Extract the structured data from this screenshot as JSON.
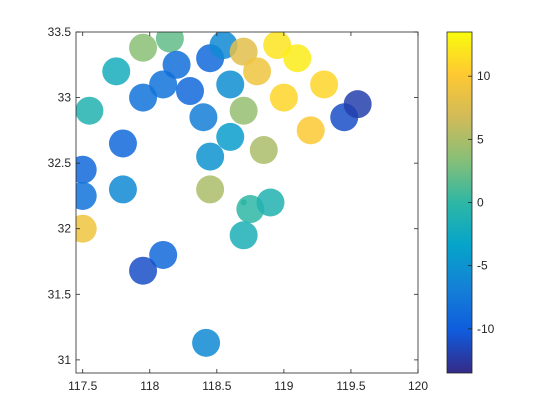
{
  "chart_data": {
    "type": "heatmap",
    "title": "",
    "xlabel": "",
    "ylabel": "",
    "xlim": [
      117.45,
      120.0
    ],
    "ylim": [
      30.9,
      33.5
    ],
    "x_ticks": [
      117.5,
      118,
      118.5,
      119,
      119.5,
      120
    ],
    "x_tick_labels": [
      "117.5",
      "118",
      "118.5",
      "119",
      "119.5",
      "120"
    ],
    "y_ticks": [
      31,
      31.5,
      32,
      32.5,
      33,
      33.5
    ],
    "y_tick_labels": [
      "31",
      "31.5",
      "32",
      "32.5",
      "33",
      "33.5"
    ],
    "grid": false,
    "colorbar": {
      "range": [
        -13.5,
        13.5
      ],
      "ticks": [
        -10,
        -5,
        0,
        5,
        10
      ],
      "tick_labels": [
        "-10",
        "-5",
        "0",
        "5",
        "10"
      ],
      "colormap": "parula",
      "colors": [
        "#352a87",
        "#0f5cdd",
        "#1481d6",
        "#06a4ca",
        "#2eb7a4",
        "#87bf77",
        "#d1bb59",
        "#fec832",
        "#f9fb0e"
      ]
    },
    "radar_center": [
      118.7,
      32.2
    ],
    "field_cells": [
      {
        "lon": 117.95,
        "lat": 33.38,
        "value": 3.5
      },
      {
        "lon": 118.15,
        "lat": 33.45,
        "value": 2.0
      },
      {
        "lon": 117.75,
        "lat": 33.2,
        "value": -2.0
      },
      {
        "lon": 117.55,
        "lat": 32.9,
        "value": -1.0
      },
      {
        "lon": 117.5,
        "lat": 32.45,
        "value": -9.0
      },
      {
        "lon": 117.5,
        "lat": 32.25,
        "value": -8.0
      },
      {
        "lon": 117.5,
        "lat": 32.0,
        "value": 9.0
      },
      {
        "lon": 117.8,
        "lat": 32.65,
        "value": -9.0
      },
      {
        "lon": 117.8,
        "lat": 32.3,
        "value": -6.0
      },
      {
        "lon": 117.95,
        "lat": 33.0,
        "value": -8.0
      },
      {
        "lon": 118.1,
        "lat": 33.1,
        "value": -8.0
      },
      {
        "lon": 118.2,
        "lat": 33.25,
        "value": -8.5
      },
      {
        "lon": 118.3,
        "lat": 33.05,
        "value": -9.0
      },
      {
        "lon": 118.4,
        "lat": 32.85,
        "value": -7.0
      },
      {
        "lon": 118.45,
        "lat": 33.3,
        "value": -9.0
      },
      {
        "lon": 118.45,
        "lat": 32.55,
        "value": -5.0
      },
      {
        "lon": 118.55,
        "lat": 33.4,
        "value": -6.0
      },
      {
        "lon": 118.6,
        "lat": 33.1,
        "value": -5.5
      },
      {
        "lon": 118.6,
        "lat": 32.7,
        "value": -4.0
      },
      {
        "lon": 118.7,
        "lat": 33.35,
        "value": 8.0
      },
      {
        "lon": 118.7,
        "lat": 32.9,
        "value": 4.0
      },
      {
        "lon": 118.8,
        "lat": 33.2,
        "value": 9.0
      },
      {
        "lon": 118.85,
        "lat": 32.6,
        "value": 5.0
      },
      {
        "lon": 118.95,
        "lat": 33.4,
        "value": 12.0
      },
      {
        "lon": 119.0,
        "lat": 33.0,
        "value": 11.0
      },
      {
        "lon": 119.1,
        "lat": 33.3,
        "value": 12.5
      },
      {
        "lon": 119.2,
        "lat": 32.75,
        "value": 10.0
      },
      {
        "lon": 119.3,
        "lat": 33.1,
        "value": 11.0
      },
      {
        "lon": 119.45,
        "lat": 32.85,
        "value": -11.0
      },
      {
        "lon": 119.55,
        "lat": 32.95,
        "value": -12.0
      },
      {
        "lon": 118.45,
        "lat": 32.3,
        "value": 5.0
      },
      {
        "lon": 118.75,
        "lat": 32.15,
        "value": 0.0
      },
      {
        "lon": 118.9,
        "lat": 32.2,
        "value": -1.0
      },
      {
        "lon": 118.7,
        "lat": 31.95,
        "value": -1.5
      },
      {
        "lon": 118.1,
        "lat": 31.8,
        "value": -9.0
      },
      {
        "lon": 117.95,
        "lat": 31.68,
        "value": -11.0
      },
      {
        "lon": 118.42,
        "lat": 31.13,
        "value": -6.0
      }
    ]
  }
}
